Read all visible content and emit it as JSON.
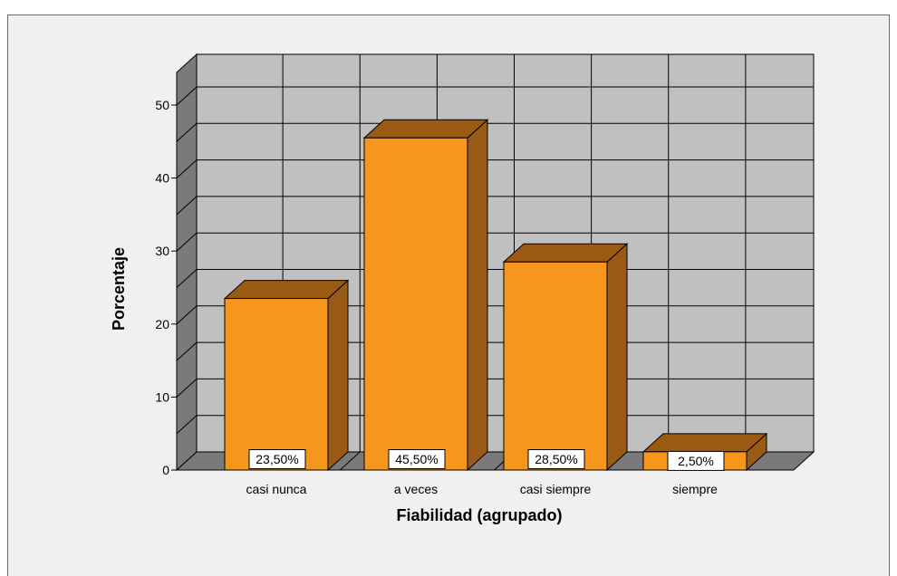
{
  "chart_data": {
    "type": "bar",
    "style": "3d",
    "categories": [
      "casi  nunca",
      "a veces",
      "casi siempre",
      "siempre"
    ],
    "values": [
      23.5,
      45.5,
      28.5,
      2.5
    ],
    "data_labels": [
      "23,50%",
      "45,50%",
      "28,50%",
      "2,50%"
    ],
    "title": "",
    "xlabel": "Fiabilidad (agrupado)",
    "ylabel": "Porcentaje",
    "ylim": [
      0,
      50
    ],
    "yticks": [
      0,
      10,
      20,
      30,
      40,
      50
    ],
    "grid": true,
    "colors": {
      "bar_front": "#f7961d",
      "bar_top": "#9b5a12",
      "bar_side": "#995a18",
      "back_wall": "#c0c0c0",
      "side_wall": "#7a7a7a",
      "floor": "#7a7a7a",
      "grid": "#000000",
      "frame_bg": "#f0f0f0"
    }
  }
}
